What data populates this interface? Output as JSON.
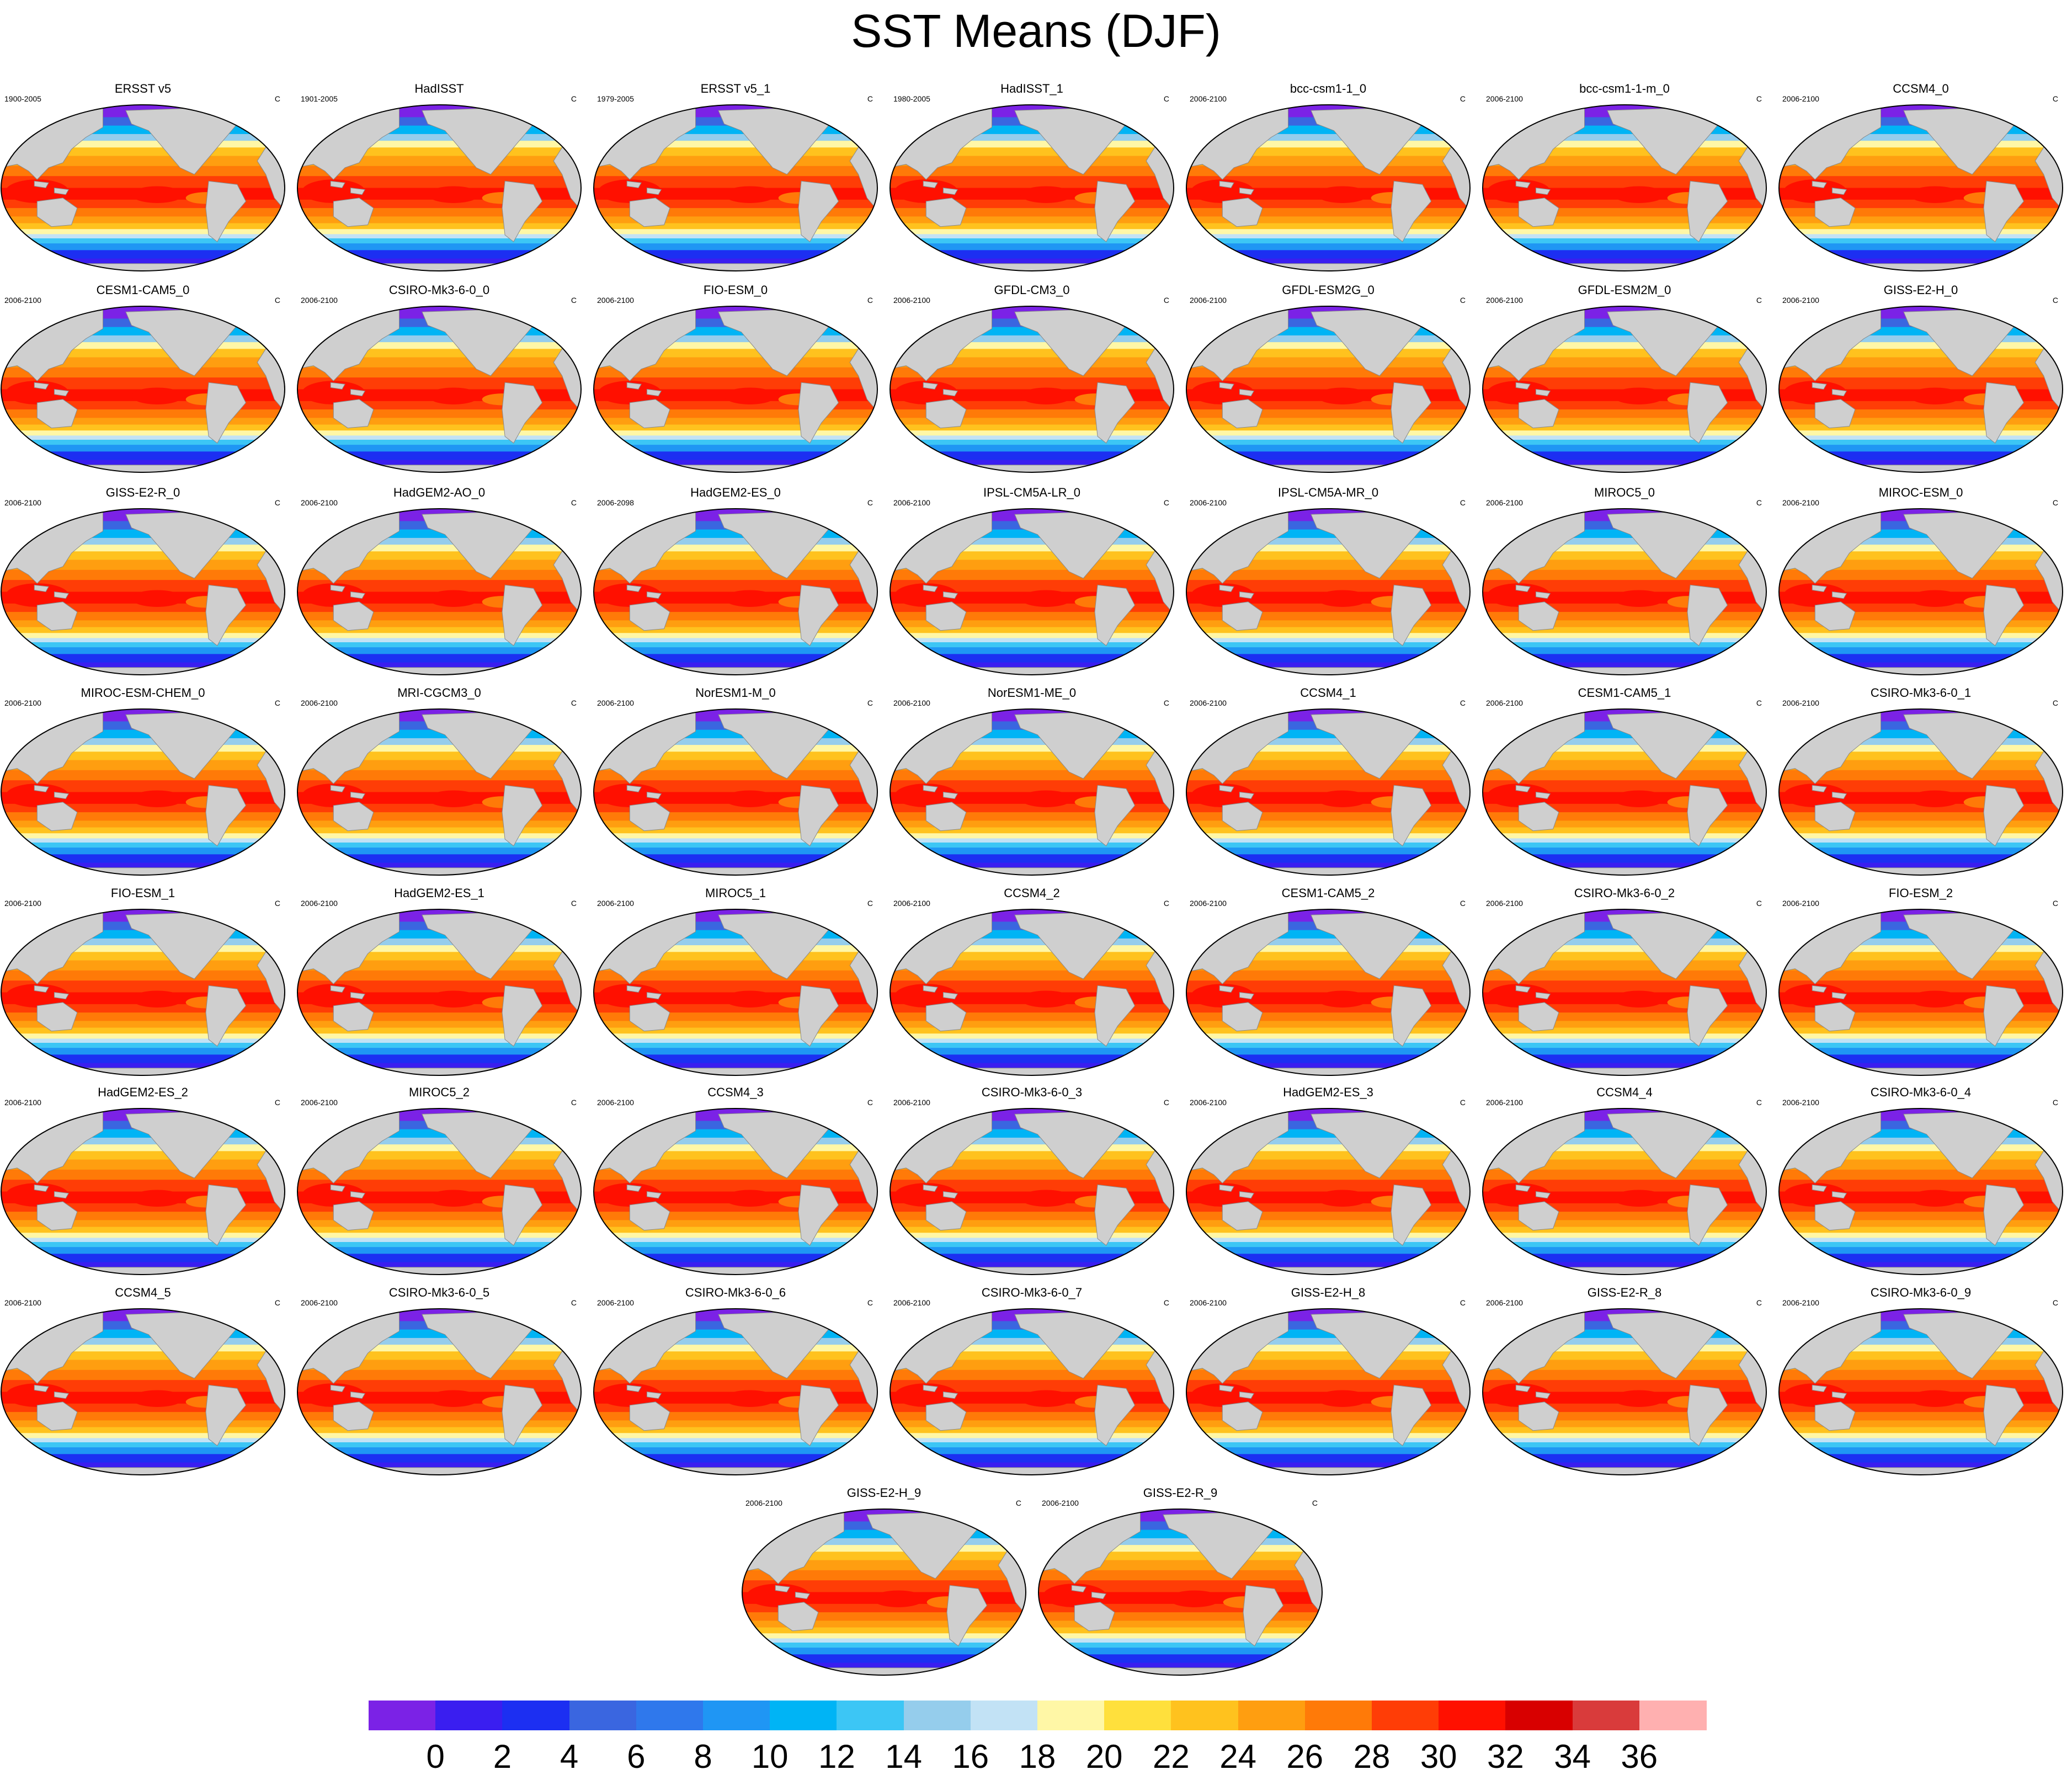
{
  "title": "SST Means (DJF)",
  "units": "C",
  "panels": [
    {
      "name": "ERSST v5",
      "period": "1900-2005"
    },
    {
      "name": "HadISST",
      "period": "1901-2005"
    },
    {
      "name": "ERSST v5_1",
      "period": "1979-2005"
    },
    {
      "name": "HadISST_1",
      "period": "1980-2005"
    },
    {
      "name": "bcc-csm1-1_0",
      "period": "2006-2100"
    },
    {
      "name": "bcc-csm1-1-m_0",
      "period": "2006-2100"
    },
    {
      "name": "CCSM4_0",
      "period": "2006-2100"
    },
    {
      "name": "CESM1-CAM5_0",
      "period": "2006-2100"
    },
    {
      "name": "CSIRO-Mk3-6-0_0",
      "period": "2006-2100"
    },
    {
      "name": "FIO-ESM_0",
      "period": "2006-2100"
    },
    {
      "name": "GFDL-CM3_0",
      "period": "2006-2100"
    },
    {
      "name": "GFDL-ESM2G_0",
      "period": "2006-2100"
    },
    {
      "name": "GFDL-ESM2M_0",
      "period": "2006-2100"
    },
    {
      "name": "GISS-E2-H_0",
      "period": "2006-2100"
    },
    {
      "name": "GISS-E2-R_0",
      "period": "2006-2100"
    },
    {
      "name": "HadGEM2-AO_0",
      "period": "2006-2100"
    },
    {
      "name": "HadGEM2-ES_0",
      "period": "2006-2098"
    },
    {
      "name": "IPSL-CM5A-LR_0",
      "period": "2006-2100"
    },
    {
      "name": "IPSL-CM5A-MR_0",
      "period": "2006-2100"
    },
    {
      "name": "MIROC5_0",
      "period": "2006-2100"
    },
    {
      "name": "MIROC-ESM_0",
      "period": "2006-2100"
    },
    {
      "name": "MIROC-ESM-CHEM_0",
      "period": "2006-2100"
    },
    {
      "name": "MRI-CGCM3_0",
      "period": "2006-2100"
    },
    {
      "name": "NorESM1-M_0",
      "period": "2006-2100"
    },
    {
      "name": "NorESM1-ME_0",
      "period": "2006-2100"
    },
    {
      "name": "CCSM4_1",
      "period": "2006-2100"
    },
    {
      "name": "CESM1-CAM5_1",
      "period": "2006-2100"
    },
    {
      "name": "CSIRO-Mk3-6-0_1",
      "period": "2006-2100"
    },
    {
      "name": "FIO-ESM_1",
      "period": "2006-2100"
    },
    {
      "name": "HadGEM2-ES_1",
      "period": "2006-2100"
    },
    {
      "name": "MIROC5_1",
      "period": "2006-2100"
    },
    {
      "name": "CCSM4_2",
      "period": "2006-2100"
    },
    {
      "name": "CESM1-CAM5_2",
      "period": "2006-2100"
    },
    {
      "name": "CSIRO-Mk3-6-0_2",
      "period": "2006-2100"
    },
    {
      "name": "FIO-ESM_2",
      "period": "2006-2100"
    },
    {
      "name": "HadGEM2-ES_2",
      "period": "2006-2100"
    },
    {
      "name": "MIROC5_2",
      "period": "2006-2100"
    },
    {
      "name": "CCSM4_3",
      "period": "2006-2100"
    },
    {
      "name": "CSIRO-Mk3-6-0_3",
      "period": "2006-2100"
    },
    {
      "name": "HadGEM2-ES_3",
      "period": "2006-2100"
    },
    {
      "name": "CCSM4_4",
      "period": "2006-2100"
    },
    {
      "name": "CSIRO-Mk3-6-0_4",
      "period": "2006-2100"
    },
    {
      "name": "CCSM4_5",
      "period": "2006-2100"
    },
    {
      "name": "CSIRO-Mk3-6-0_5",
      "period": "2006-2100"
    },
    {
      "name": "CSIRO-Mk3-6-0_6",
      "period": "2006-2100"
    },
    {
      "name": "CSIRO-Mk3-6-0_7",
      "period": "2006-2100"
    },
    {
      "name": "GISS-E2-H_8",
      "period": "2006-2100"
    },
    {
      "name": "GISS-E2-R_8",
      "period": "2006-2100"
    },
    {
      "name": "CSIRO-Mk3-6-0_9",
      "period": "2006-2100"
    },
    {
      "name": "GISS-E2-H_9",
      "period": "2006-2100"
    },
    {
      "name": "GISS-E2-R_9",
      "period": "2006-2100"
    }
  ],
  "chart_data": {
    "type": "heatmap",
    "title": "SST Means (DJF)",
    "units": "C",
    "colorbar": {
      "levels": [
        0,
        2,
        4,
        6,
        8,
        10,
        12,
        14,
        16,
        18,
        20,
        22,
        24,
        26,
        28,
        30,
        32,
        34,
        36
      ],
      "colors": [
        "#7b22e6",
        "#3a1ef0",
        "#1c2ff2",
        "#3a66e0",
        "#2f78ec",
        "#1f96f4",
        "#00b4f5",
        "#3cc6f5",
        "#95cdec",
        "#c2e2f5",
        "#fff7a6",
        "#ffe03c",
        "#ffc21e",
        "#ff9e10",
        "#ff7a08",
        "#ff3d06",
        "#ff1000",
        "#d80000",
        "#d93b3b",
        "#ffb0b0"
      ]
    },
    "land_color": "#cfcfcf"
  }
}
